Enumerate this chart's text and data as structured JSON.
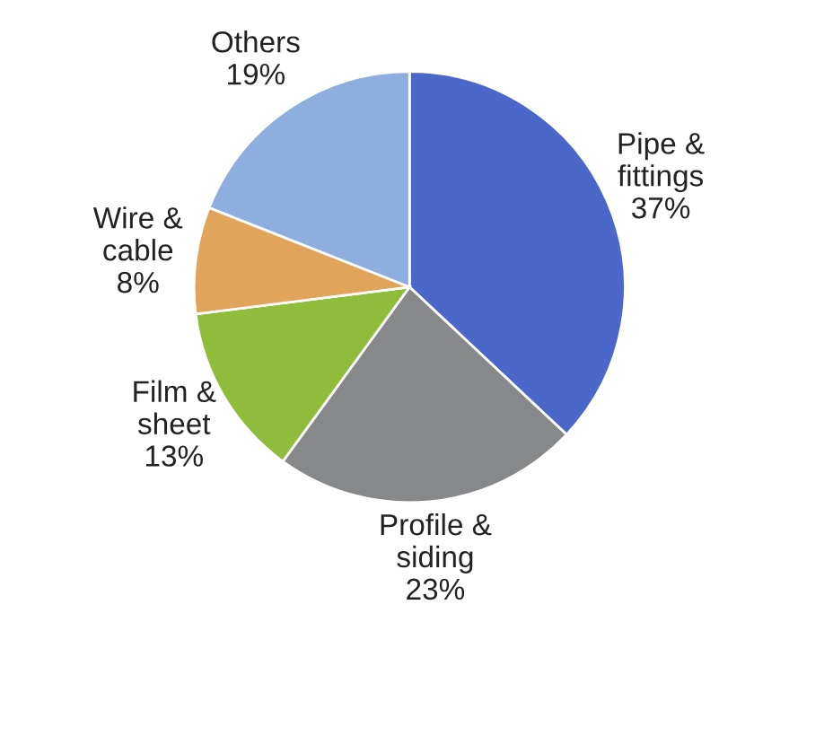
{
  "chart_data": {
    "type": "pie",
    "categories": [
      "Pipe &\nfittings",
      "Profile &\nsiding",
      "Film &\nsheet",
      "Wire &\ncable",
      "Others"
    ],
    "values": [
      37,
      23,
      13,
      8,
      19
    ],
    "value_labels": [
      "37%",
      "23%",
      "13%",
      "8%",
      "19%"
    ],
    "colors": [
      "#4a67c9",
      "#87888a",
      "#8fbc3a",
      "#e0a55a",
      "#8eaedf"
    ],
    "legend": false
  }
}
